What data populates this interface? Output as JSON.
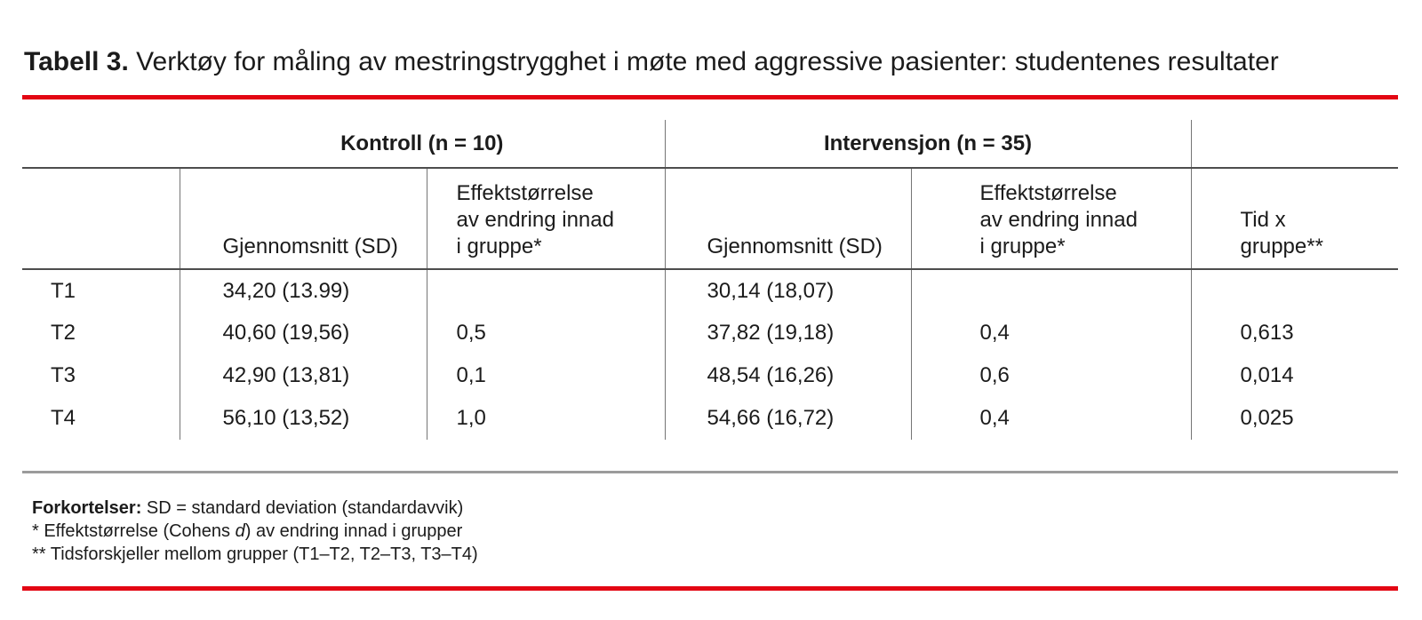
{
  "accent_color": "#e30613",
  "title": {
    "label": "Tabell 3.",
    "text": " Verktøy for måling av mestringstrygghet i møte med aggressive pasienter: studentenes resultater"
  },
  "table": {
    "groups": {
      "kontroll": "Kontroll (n = 10)",
      "intervensjon": "Intervensjon (n = 35)"
    },
    "columns": {
      "mean_sd_kontroll": "Gjennomsnitt (SD)",
      "effect_size_kontroll": "Effektstørrelse\nav endring innad\ni gruppe*",
      "mean_sd_intervensjon": "Gjennomsnitt (SD)",
      "effect_size_intervensjon": "Effektstørrelse\nav endring innad\ni gruppe*",
      "time_x_group": "Tid x\ngruppe**"
    },
    "rows": [
      {
        "label": "T1",
        "kontroll_mean": "34,20 (13.99)",
        "kontroll_effect": "",
        "intervensjon_mean": "30,14 (18,07)",
        "intervensjon_effect": "",
        "tid_gruppe": ""
      },
      {
        "label": "T2",
        "kontroll_mean": "40,60 (19,56)",
        "kontroll_effect": "0,5",
        "intervensjon_mean": "37,82 (19,18)",
        "intervensjon_effect": "0,4",
        "tid_gruppe": "0,613"
      },
      {
        "label": "T3",
        "kontroll_mean": "42,90 (13,81)",
        "kontroll_effect": "0,1",
        "intervensjon_mean": "48,54 (16,26)",
        "intervensjon_effect": "0,6",
        "tid_gruppe": "0,014"
      },
      {
        "label": "T4",
        "kontroll_mean": "56,10 (13,52)",
        "kontroll_effect": "1,0",
        "intervensjon_mean": "54,66 (16,72)",
        "intervensjon_effect": "0,4",
        "tid_gruppe": "0,025"
      }
    ]
  },
  "footnotes": {
    "abbrev_label": "Forkortelser:",
    "abbrev_text": " SD = standard deviation (standardavvik)",
    "note_effect": {
      "pre": "* Effektstørrelse (Cohens ",
      "italic": "d",
      "post": ") av endring innad i grupper"
    },
    "note_time": "** Tidsforskjeller mellom grupper (T1–T2, T2–T3, T3–T4)"
  }
}
